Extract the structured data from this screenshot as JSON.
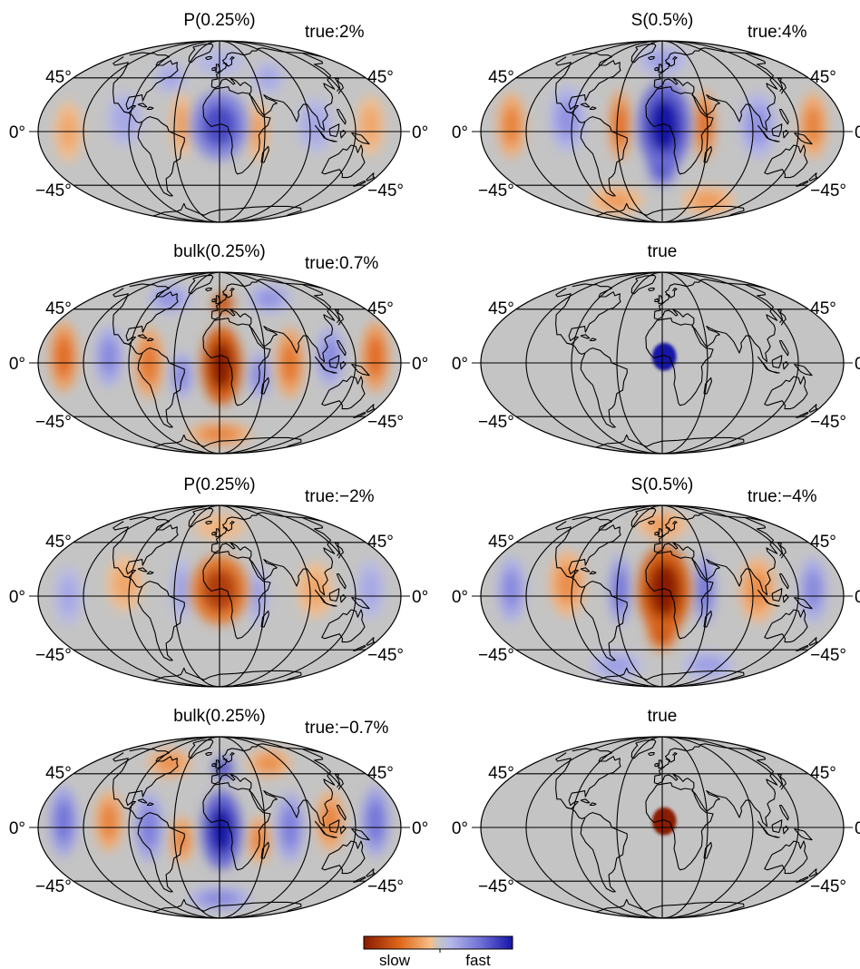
{
  "colors": {
    "background_gray": "#c4c4c4",
    "slow_dark": "#8b1a00",
    "slow_mid": "#e06a1a",
    "slow_light": "#f5b070",
    "neutral": "#c4c4c4",
    "fast_light": "#b6b8ea",
    "fast_dark": "#1414a8",
    "line": "#000000"
  },
  "lat_labels": {
    "north": "45°",
    "equator": "0°",
    "south": "−45°"
  },
  "legend": {
    "slow_label": "slow",
    "fast_label": "fast"
  },
  "panels": [
    {
      "id": "p1",
      "title": "P(0.25%)",
      "true_label": "true:2%",
      "anomalies": [
        {
          "lon": 0,
          "lat": 5,
          "rx": 28,
          "ry": 30,
          "v": 0.75
        },
        {
          "lon": -38,
          "lat": 5,
          "rx": 10,
          "ry": 28,
          "v": -0.35
        },
        {
          "lon": 38,
          "lat": 0,
          "rx": 10,
          "ry": 26,
          "v": -0.35
        },
        {
          "lon": -95,
          "lat": 10,
          "rx": 18,
          "ry": 24,
          "v": 0.3
        },
        {
          "lon": 95,
          "lat": 5,
          "rx": 18,
          "ry": 24,
          "v": 0.3
        },
        {
          "lon": -150,
          "lat": 0,
          "rx": 14,
          "ry": 26,
          "v": -0.3
        },
        {
          "lon": 150,
          "lat": 5,
          "rx": 14,
          "ry": 26,
          "v": -0.3
        },
        {
          "lon": 0,
          "lat": 60,
          "rx": 40,
          "ry": 12,
          "v": 0.25
        },
        {
          "lon": -60,
          "lat": 45,
          "rx": 20,
          "ry": 14,
          "v": 0.3
        },
        {
          "lon": 60,
          "lat": 45,
          "rx": 20,
          "ry": 14,
          "v": 0.3
        }
      ]
    },
    {
      "id": "p2",
      "title": "S(0.5%)",
      "true_label": "true:4%",
      "anomalies": [
        {
          "lon": 2,
          "lat": 5,
          "rx": 26,
          "ry": 38,
          "v": 1.0
        },
        {
          "lon": 0,
          "lat": -30,
          "rx": 16,
          "ry": 16,
          "v": 0.7
        },
        {
          "lon": -42,
          "lat": 5,
          "rx": 11,
          "ry": 30,
          "v": -0.55
        },
        {
          "lon": 42,
          "lat": 5,
          "rx": 11,
          "ry": 30,
          "v": -0.55
        },
        {
          "lon": -95,
          "lat": 10,
          "rx": 18,
          "ry": 28,
          "v": 0.4
        },
        {
          "lon": 95,
          "lat": 5,
          "rx": 18,
          "ry": 28,
          "v": 0.4
        },
        {
          "lon": -150,
          "lat": 5,
          "rx": 14,
          "ry": 28,
          "v": -0.45
        },
        {
          "lon": 150,
          "lat": 5,
          "rx": 14,
          "ry": 28,
          "v": -0.45
        },
        {
          "lon": 0,
          "lat": 62,
          "rx": 40,
          "ry": 12,
          "v": 0.35
        },
        {
          "lon": -70,
          "lat": -60,
          "rx": 40,
          "ry": 12,
          "v": -0.35
        },
        {
          "lon": 70,
          "lat": -60,
          "rx": 40,
          "ry": 12,
          "v": -0.35
        }
      ]
    },
    {
      "id": "b1",
      "title": "bulk(0.25%)",
      "true_label": "true:0.7%",
      "anomalies": [
        {
          "lon": 2,
          "lat": -2,
          "rx": 20,
          "ry": 34,
          "v": -1.0
        },
        {
          "lon": 5,
          "lat": 50,
          "rx": 14,
          "ry": 10,
          "v": -0.8
        },
        {
          "lon": -38,
          "lat": -10,
          "rx": 12,
          "ry": 20,
          "v": 0.45
        },
        {
          "lon": 40,
          "lat": -10,
          "rx": 12,
          "ry": 20,
          "v": 0.45
        },
        {
          "lon": -70,
          "lat": 0,
          "rx": 14,
          "ry": 30,
          "v": -0.5
        },
        {
          "lon": 70,
          "lat": 0,
          "rx": 14,
          "ry": 30,
          "v": -0.5
        },
        {
          "lon": -110,
          "lat": 5,
          "rx": 14,
          "ry": 26,
          "v": 0.45
        },
        {
          "lon": 110,
          "lat": 5,
          "rx": 14,
          "ry": 26,
          "v": 0.45
        },
        {
          "lon": -155,
          "lat": 5,
          "rx": 14,
          "ry": 30,
          "v": -0.55
        },
        {
          "lon": 155,
          "lat": 5,
          "rx": 14,
          "ry": 30,
          "v": -0.55
        },
        {
          "lon": -70,
          "lat": 55,
          "rx": 30,
          "ry": 12,
          "v": 0.4
        },
        {
          "lon": 70,
          "lat": 55,
          "rx": 30,
          "ry": 12,
          "v": 0.4
        },
        {
          "lon": 0,
          "lat": -62,
          "rx": 50,
          "ry": 10,
          "v": -0.45
        }
      ]
    },
    {
      "id": "t1",
      "title": "true",
      "true_label": "",
      "anomalies": [
        {
          "lon": 2,
          "lat": 5,
          "rx": 12,
          "ry": 12,
          "v": 1.0,
          "sharp": true
        }
      ]
    },
    {
      "id": "p3",
      "title": "P(0.25%)",
      "true_label": "true:−2%",
      "anomalies": [
        {
          "lon": 0,
          "lat": 5,
          "rx": 28,
          "ry": 30,
          "v": -0.8
        },
        {
          "lon": -38,
          "lat": 5,
          "rx": 10,
          "ry": 28,
          "v": 0.35
        },
        {
          "lon": 38,
          "lat": 0,
          "rx": 10,
          "ry": 26,
          "v": 0.35
        },
        {
          "lon": -95,
          "lat": 10,
          "rx": 18,
          "ry": 24,
          "v": -0.3
        },
        {
          "lon": 95,
          "lat": 5,
          "rx": 18,
          "ry": 24,
          "v": -0.3
        },
        {
          "lon": -150,
          "lat": 0,
          "rx": 14,
          "ry": 26,
          "v": 0.3
        },
        {
          "lon": 150,
          "lat": 5,
          "rx": 14,
          "ry": 26,
          "v": 0.3
        },
        {
          "lon": 0,
          "lat": 60,
          "rx": 40,
          "ry": 12,
          "v": -0.25
        }
      ]
    },
    {
      "id": "p4",
      "title": "S(0.5%)",
      "true_label": "true:−4%",
      "anomalies": [
        {
          "lon": 2,
          "lat": 5,
          "rx": 26,
          "ry": 38,
          "v": -1.0
        },
        {
          "lon": 0,
          "lat": -30,
          "rx": 16,
          "ry": 16,
          "v": -0.7
        },
        {
          "lon": -42,
          "lat": 5,
          "rx": 11,
          "ry": 30,
          "v": 0.55
        },
        {
          "lon": 42,
          "lat": 5,
          "rx": 11,
          "ry": 30,
          "v": 0.55
        },
        {
          "lon": -95,
          "lat": 10,
          "rx": 18,
          "ry": 28,
          "v": -0.4
        },
        {
          "lon": 95,
          "lat": 5,
          "rx": 18,
          "ry": 28,
          "v": -0.4
        },
        {
          "lon": -150,
          "lat": 5,
          "rx": 14,
          "ry": 28,
          "v": 0.45
        },
        {
          "lon": 150,
          "lat": 5,
          "rx": 14,
          "ry": 28,
          "v": 0.45
        },
        {
          "lon": 0,
          "lat": 62,
          "rx": 40,
          "ry": 12,
          "v": -0.35
        },
        {
          "lon": -70,
          "lat": -60,
          "rx": 40,
          "ry": 12,
          "v": 0.35
        },
        {
          "lon": 70,
          "lat": -60,
          "rx": 40,
          "ry": 12,
          "v": 0.35
        }
      ]
    },
    {
      "id": "b2",
      "title": "bulk(0.25%)",
      "true_label": "true:−0.7%",
      "anomalies": [
        {
          "lon": 2,
          "lat": -2,
          "rx": 20,
          "ry": 34,
          "v": 1.0
        },
        {
          "lon": 5,
          "lat": 50,
          "rx": 14,
          "ry": 10,
          "v": 0.8
        },
        {
          "lon": -38,
          "lat": -10,
          "rx": 12,
          "ry": 20,
          "v": -0.45
        },
        {
          "lon": 40,
          "lat": -10,
          "rx": 12,
          "ry": 20,
          "v": -0.45
        },
        {
          "lon": -70,
          "lat": 0,
          "rx": 14,
          "ry": 30,
          "v": 0.5
        },
        {
          "lon": 70,
          "lat": 0,
          "rx": 14,
          "ry": 30,
          "v": 0.5
        },
        {
          "lon": -110,
          "lat": 5,
          "rx": 14,
          "ry": 26,
          "v": -0.45
        },
        {
          "lon": 110,
          "lat": 5,
          "rx": 14,
          "ry": 26,
          "v": -0.45
        },
        {
          "lon": -155,
          "lat": 5,
          "rx": 14,
          "ry": 30,
          "v": 0.55
        },
        {
          "lon": 155,
          "lat": 5,
          "rx": 14,
          "ry": 30,
          "v": 0.55
        },
        {
          "lon": -70,
          "lat": 55,
          "rx": 30,
          "ry": 12,
          "v": -0.4
        },
        {
          "lon": 70,
          "lat": 55,
          "rx": 30,
          "ry": 12,
          "v": -0.4
        },
        {
          "lon": 0,
          "lat": -62,
          "rx": 50,
          "ry": 10,
          "v": 0.45
        }
      ]
    },
    {
      "id": "t2",
      "title": "true",
      "true_label": "",
      "anomalies": [
        {
          "lon": 2,
          "lat": 5,
          "rx": 12,
          "ry": 12,
          "v": -1.0,
          "sharp": true
        }
      ]
    }
  ]
}
